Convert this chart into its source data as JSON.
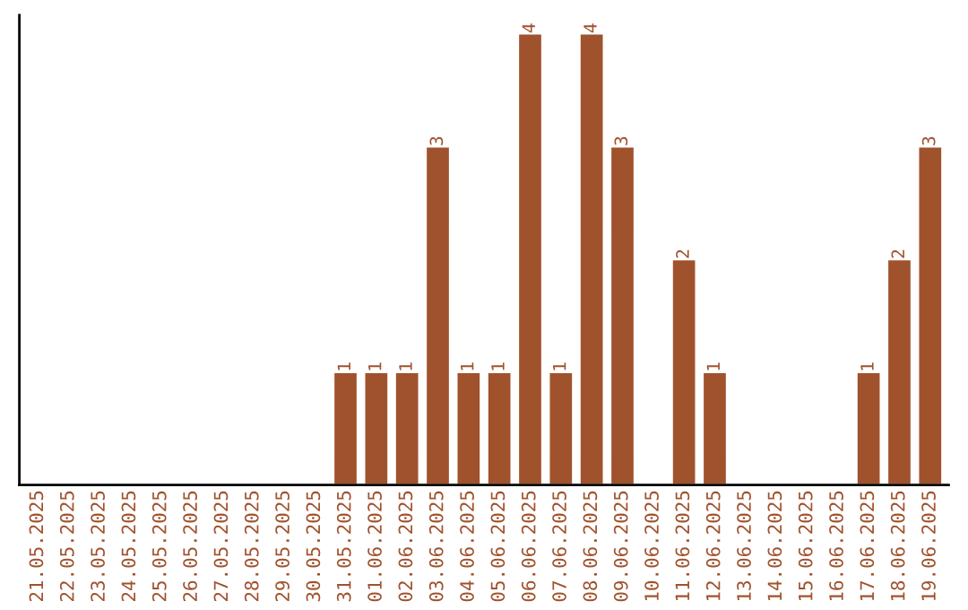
{
  "chart_data": {
    "type": "bar",
    "categories": [
      "21.05.2025",
      "22.05.2025",
      "23.05.2025",
      "24.05.2025",
      "25.05.2025",
      "26.05.2025",
      "27.05.2025",
      "28.05.2025",
      "29.05.2025",
      "30.05.2025",
      "31.05.2025",
      "01.06.2025",
      "02.06.2025",
      "03.06.2025",
      "04.06.2025",
      "05.06.2025",
      "06.06.2025",
      "07.06.2025",
      "08.06.2025",
      "09.06.2025",
      "10.06.2025",
      "11.06.2025",
      "12.06.2025",
      "13.06.2025",
      "14.06.2025",
      "15.06.2025",
      "16.06.2025",
      "17.06.2025",
      "18.06.2025",
      "19.06.2025"
    ],
    "values": [
      0,
      0,
      0,
      0,
      0,
      0,
      0,
      0,
      0,
      0,
      1,
      1,
      1,
      3,
      1,
      1,
      4,
      1,
      4,
      3,
      0,
      2,
      1,
      0,
      0,
      0,
      0,
      1,
      2,
      3
    ],
    "value_labels": [
      null,
      null,
      null,
      null,
      null,
      null,
      null,
      null,
      null,
      null,
      "1",
      "1",
      "1",
      "3",
      "1",
      "1",
      "4",
      "1",
      "4",
      "3",
      null,
      "2",
      "1",
      null,
      null,
      null,
      null,
      "1",
      "2",
      "3"
    ],
    "color": "#a0522d",
    "tick_labels": "x",
    "grid": false,
    "legend": false
  }
}
